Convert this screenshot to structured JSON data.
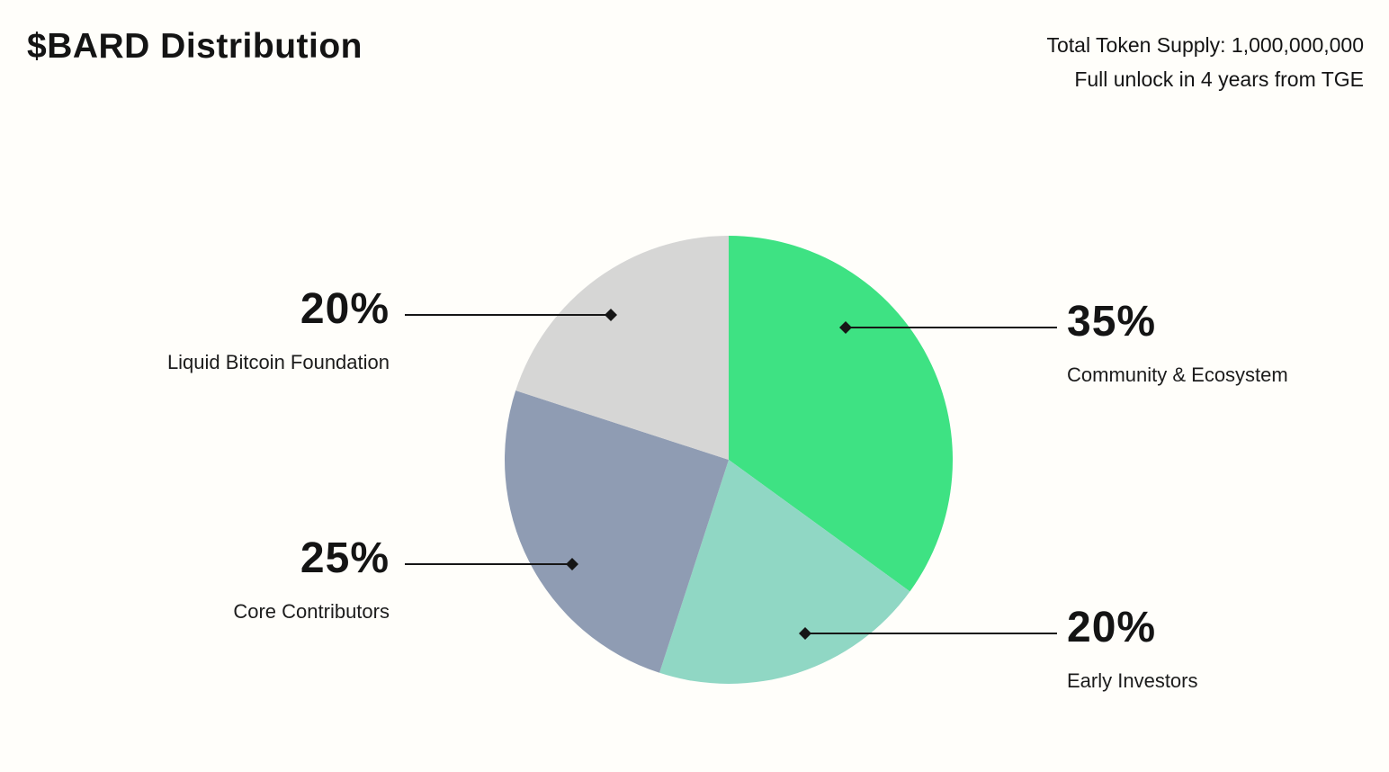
{
  "header": {
    "title": "$BARD Distribution",
    "supply_line1": "Total Token Supply: 1,000,000,000",
    "supply_line2": "Full unlock in 4 years from TGE"
  },
  "chart_data": {
    "type": "pie",
    "title": "$BARD Distribution",
    "total_supply_note": "Total Token Supply: 1,000,000,000",
    "unlock_note": "Full unlock in 4 years from TGE",
    "start_angle_deg": -90,
    "direction": "clockwise",
    "slices": [
      {
        "id": "community-ecosystem",
        "label": "Community & Ecosystem",
        "value": 35,
        "pct_label": "35%",
        "color": "#3ee283"
      },
      {
        "id": "early-investors",
        "label": "Early Investors",
        "value": 20,
        "pct_label": "20%",
        "color": "#90d7c4"
      },
      {
        "id": "core-contributors",
        "label": "Core Contributors",
        "value": 25,
        "pct_label": "25%",
        "color": "#8f9cb3"
      },
      {
        "id": "liquid-bitcoin-foundation",
        "label": "Liquid Bitcoin Foundation",
        "value": 20,
        "pct_label": "20%",
        "color": "#d6d6d5"
      }
    ]
  }
}
